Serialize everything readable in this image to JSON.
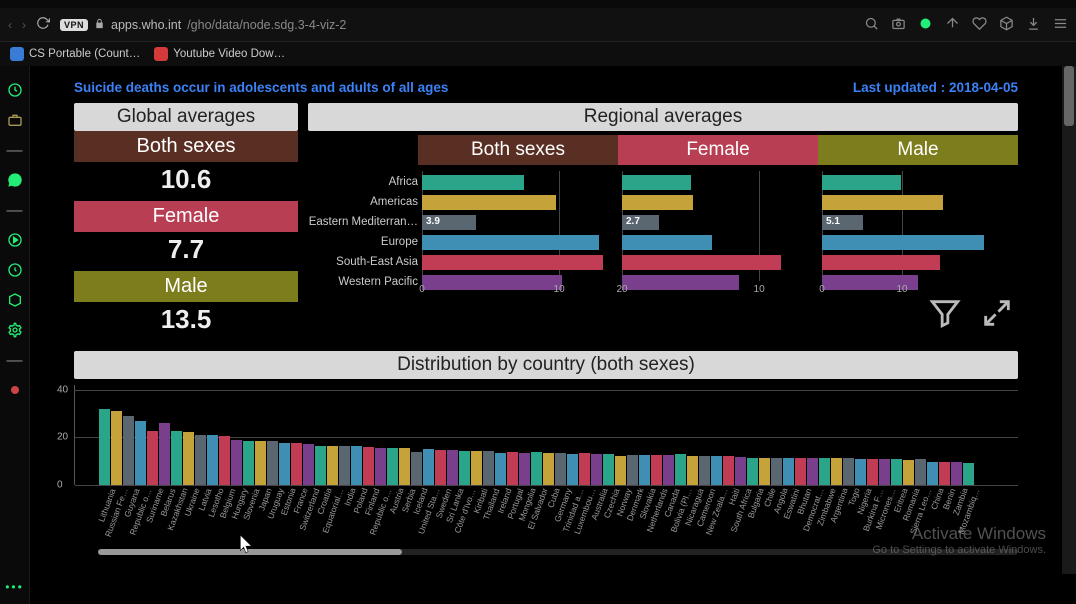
{
  "browser": {
    "url_host": "apps.who.int",
    "url_path": "/gho/data/node.sdg.3-4-viz-2",
    "vpn_badge": "VPN",
    "bookmarks": [
      {
        "label": "CS Portable (Count…",
        "icon_bg": "#3a7bd5"
      },
      {
        "label": "Youtube Video Dow…",
        "icon_bg": "#d43a3a"
      }
    ]
  },
  "colors": {
    "both": "#5a2f23",
    "female": "#b83e54",
    "male": "#7d7d1e",
    "region_palette": [
      "#2aa58a",
      "#c5a23a",
      "#5a6670",
      "#3f8fb5",
      "#c13c55",
      "#7a3f8c"
    ],
    "grid": "#444"
  },
  "headline": {
    "title": "Suicide deaths occur in adolescents and adults of all ages",
    "last_updated_label": "Last updated : ",
    "last_updated_value": "2018-04-05"
  },
  "global": {
    "header": "Global averages",
    "rows": [
      {
        "label": "Both sexes",
        "value": "10.6",
        "color_key": "both"
      },
      {
        "label": "Female",
        "value": "7.7",
        "color_key": "female"
      },
      {
        "label": "Male",
        "value": "13.5",
        "color_key": "male"
      }
    ]
  },
  "regional": {
    "header": "Regional averages",
    "regions": [
      "Africa",
      "Americas",
      "Eastern Mediterran…",
      "Europe",
      "South-East Asia",
      "Western Pacific"
    ],
    "columns": [
      {
        "label": "Both sexes",
        "color_key": "both",
        "x_ticks": [
          0,
          10
        ],
        "x_max": 14,
        "values": [
          7.4,
          9.8,
          3.9,
          12.9,
          13.2,
          10.2
        ],
        "highlight_index": 2,
        "highlight_value": "3.9"
      },
      {
        "label": "Female",
        "color_key": "female",
        "x_ticks": [
          20,
          10
        ],
        "x_max": 14,
        "values": [
          5.0,
          5.2,
          2.7,
          6.6,
          11.6,
          8.5
        ],
        "highlight_index": 2,
        "highlight_value": "2.7"
      },
      {
        "label": "Male",
        "color_key": "male",
        "x_ticks": [
          0,
          10
        ],
        "x_max": 24,
        "values": [
          9.9,
          15.1,
          5.1,
          20.3,
          14.8,
          12.0
        ],
        "highlight_index": 2,
        "highlight_value": "5.1"
      }
    ]
  },
  "country": {
    "header": "Distribution by country (both sexes)",
    "y_ticks": [
      0,
      20,
      40
    ],
    "y_max": 42,
    "countries": [
      {
        "n": "Lithuania",
        "v": 31.9
      },
      {
        "n": "Russian Fe…",
        "v": 31.0
      },
      {
        "n": "Guyana",
        "v": 29.2
      },
      {
        "n": "Republic o…",
        "v": 26.9
      },
      {
        "n": "Suriname",
        "v": 22.8
      },
      {
        "n": "Belarus",
        "v": 26.2
      },
      {
        "n": "Kazakhstan",
        "v": 22.5
      },
      {
        "n": "Ukraine",
        "v": 22.4
      },
      {
        "n": "Latvia",
        "v": 21.2
      },
      {
        "n": "Lesotho",
        "v": 21.2
      },
      {
        "n": "Belgium",
        "v": 20.7
      },
      {
        "n": "Hungary",
        "v": 19.1
      },
      {
        "n": "Slovenia",
        "v": 18.6
      },
      {
        "n": "Japan",
        "v": 18.5
      },
      {
        "n": "Uruguay",
        "v": 18.4
      },
      {
        "n": "Estonia",
        "v": 17.8
      },
      {
        "n": "France",
        "v": 17.7
      },
      {
        "n": "Switzerland",
        "v": 17.2
      },
      {
        "n": "Croatia",
        "v": 16.5
      },
      {
        "n": "Equatorial…",
        "v": 16.4
      },
      {
        "n": "India",
        "v": 16.3
      },
      {
        "n": "Poland",
        "v": 16.2
      },
      {
        "n": "Finland",
        "v": 15.9
      },
      {
        "n": "Republic o…",
        "v": 15.4
      },
      {
        "n": "Austria",
        "v": 15.6
      },
      {
        "n": "Serbia",
        "v": 15.6
      },
      {
        "n": "Iceland",
        "v": 14.0
      },
      {
        "n": "United Sta…",
        "v": 15.3
      },
      {
        "n": "Sweden",
        "v": 14.8
      },
      {
        "n": "Sri Lanka",
        "v": 14.6
      },
      {
        "n": "Côte d'Ivo…",
        "v": 14.5
      },
      {
        "n": "Kiribati",
        "v": 14.4
      },
      {
        "n": "Thailand",
        "v": 14.4
      },
      {
        "n": "Ireland",
        "v": 13.6
      },
      {
        "n": "Portugal",
        "v": 14.0
      },
      {
        "n": "Mongolia",
        "v": 13.3
      },
      {
        "n": "El Salvador",
        "v": 13.7
      },
      {
        "n": "Cuba",
        "v": 13.3
      },
      {
        "n": "Germany",
        "v": 13.6
      },
      {
        "n": "Trinidad a…",
        "v": 13.0
      },
      {
        "n": "Luxembou…",
        "v": 13.5
      },
      {
        "n": "Australia",
        "v": 13.2
      },
      {
        "n": "Czechia",
        "v": 13.1
      },
      {
        "n": "Norway",
        "v": 12.2
      },
      {
        "n": "Denmark",
        "v": 12.8
      },
      {
        "n": "Slovakia",
        "v": 12.6
      },
      {
        "n": "Netherlands",
        "v": 12.6
      },
      {
        "n": "Canada",
        "v": 12.5
      },
      {
        "n": "Bolivia (Pl…",
        "v": 12.9
      },
      {
        "n": "Nicaragua",
        "v": 12.2
      },
      {
        "n": "Cameroon",
        "v": 12.2
      },
      {
        "n": "New Zeala…",
        "v": 12.1
      },
      {
        "n": "Haiti",
        "v": 12.2
      },
      {
        "n": "South Africa",
        "v": 11.6
      },
      {
        "n": "Bulgaria",
        "v": 11.5
      },
      {
        "n": "Chile",
        "v": 11.4
      },
      {
        "n": "Angola",
        "v": 11.4
      },
      {
        "n": "Eswatini",
        "v": 11.4
      },
      {
        "n": "Bhutan",
        "v": 11.4
      },
      {
        "n": "Democrat…",
        "v": 11.4
      },
      {
        "n": "Zimbabwe",
        "v": 11.2
      },
      {
        "n": "Argentina",
        "v": 11.2
      },
      {
        "n": "Togo",
        "v": 11.2
      },
      {
        "n": "Nigeria",
        "v": 11.1
      },
      {
        "n": "Burkina F…",
        "v": 11.0
      },
      {
        "n": "Micrones…",
        "v": 11.0
      },
      {
        "n": "Eritrea",
        "v": 11.0
      },
      {
        "n": "Romania",
        "v": 10.4
      },
      {
        "n": "Sierra Leo…",
        "v": 10.9
      },
      {
        "n": "China",
        "v": 9.7
      },
      {
        "n": "Benin",
        "v": 9.6
      },
      {
        "n": "Zambia",
        "v": 9.5
      },
      {
        "n": "Mozambiq…",
        "v": 9.4
      }
    ]
  },
  "watermark": {
    "l1": "Activate Windows",
    "l2": "Go to Settings to activate Windows."
  }
}
